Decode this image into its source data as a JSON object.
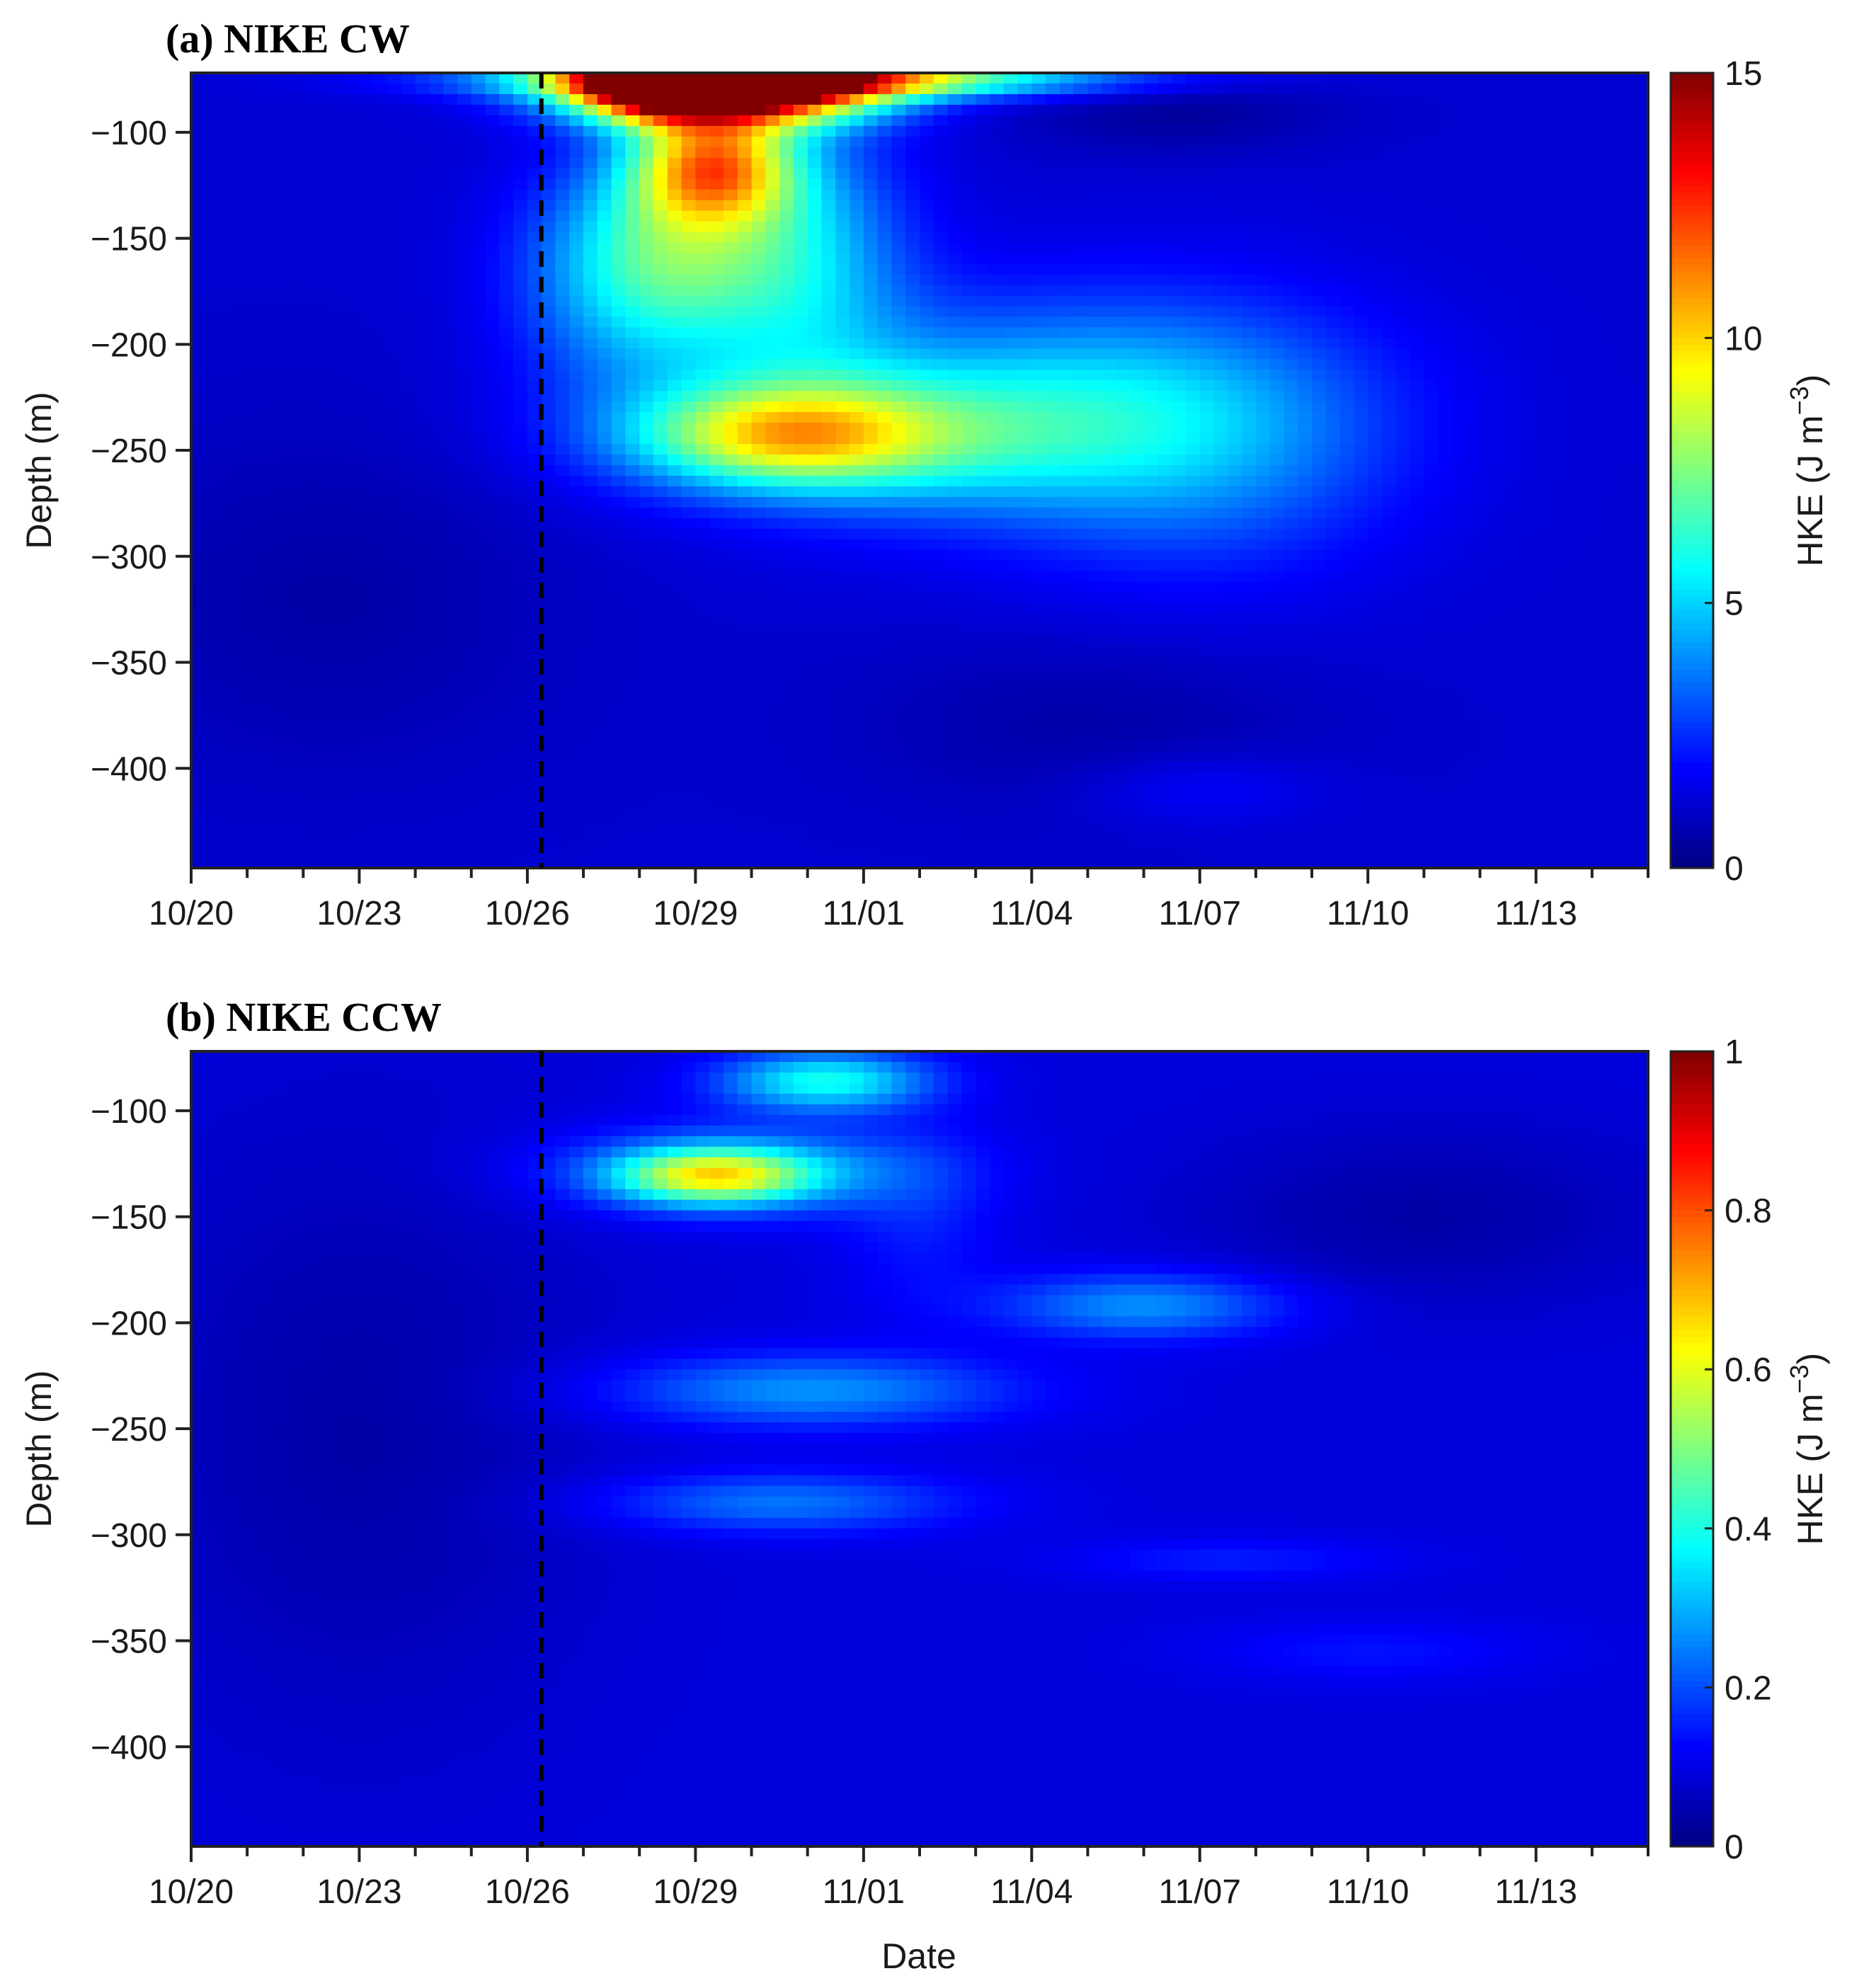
{
  "figure": {
    "xlabel": "Date",
    "colormap": "jet",
    "dashed_line_date": "10/26"
  },
  "chart_data": [
    {
      "type": "heatmap",
      "title": "(a) NIKE CW",
      "ylabel": "Depth (m)",
      "colorbar_label": "HKE (J m",
      "colorbar_label_exp": "−3",
      "colorbar_label_end": ")",
      "x_tick_labels": [
        "10/20",
        "10/23",
        "10/26",
        "10/29",
        "11/01",
        "11/04",
        "11/07",
        "11/10",
        "11/13"
      ],
      "x_tick_days": [
        0,
        3,
        6,
        9,
        12,
        15,
        18,
        21,
        24
      ],
      "x_range_days": [
        0,
        26
      ],
      "y_tick_labels": [
        "−100",
        "−150",
        "−200",
        "−250",
        "−300",
        "−350",
        "−400"
      ],
      "y_tick_values": [
        -100,
        -150,
        -200,
        -250,
        -300,
        -350,
        -400
      ],
      "ylim": [
        -447,
        -72
      ],
      "clim": [
        0,
        15
      ],
      "colorbar_tick_labels": [
        "0",
        "5",
        "10",
        "15"
      ],
      "colorbar_tick_values": [
        0,
        5,
        10,
        15
      ],
      "background": 1.2,
      "blobs": [
        {
          "x": 9.5,
          "y": -78,
          "sx": 1.8,
          "sy": 12,
          "a": 18
        },
        {
          "x": 11.0,
          "y": -75,
          "sx": 3.5,
          "sy": 6,
          "a": 8
        },
        {
          "x": 8.2,
          "y": -72,
          "sx": 0.8,
          "sy": 12,
          "a": 8
        },
        {
          "x": 9.3,
          "y": -115,
          "sx": 1.0,
          "sy": 18,
          "a": 8
        },
        {
          "x": 8.7,
          "y": -150,
          "sx": 1.5,
          "sy": 30,
          "a": 4
        },
        {
          "x": 8.0,
          "y": -180,
          "sx": 1.5,
          "sy": 35,
          "a": 2.5
        },
        {
          "x": 11.0,
          "y": -160,
          "sx": 1.3,
          "sy": 45,
          "a": 3
        },
        {
          "x": 10.5,
          "y": -243,
          "sx": 1.8,
          "sy": 16,
          "a": 5.5
        },
        {
          "x": 12.0,
          "y": -245,
          "sx": 3.0,
          "sy": 22,
          "a": 2.5
        },
        {
          "x": 14.5,
          "y": -230,
          "sx": 3.5,
          "sy": 35,
          "a": 3
        },
        {
          "x": 18.0,
          "y": -245,
          "sx": 2.5,
          "sy": 45,
          "a": 2.2
        },
        {
          "x": 17.5,
          "y": -90,
          "sx": 2.0,
          "sy": 14,
          "a": -0.8
        },
        {
          "x": 16.0,
          "y": -380,
          "sx": 3.0,
          "sy": 30,
          "a": -0.6
        },
        {
          "x": 2.5,
          "y": -320,
          "sx": 3.0,
          "sy": 60,
          "a": -0.6
        },
        {
          "x": 18.0,
          "y": -410,
          "sx": 1.5,
          "sy": 12,
          "a": 0.8
        }
      ]
    },
    {
      "type": "heatmap",
      "title": "(b) NIKE CCW",
      "ylabel": "Depth (m)",
      "colorbar_label": "HKE (J m",
      "colorbar_label_exp": "−3",
      "colorbar_label_end": ")",
      "x_tick_labels": [
        "10/20",
        "10/23",
        "10/26",
        "10/29",
        "11/01",
        "11/04",
        "11/07",
        "11/10",
        "11/13"
      ],
      "x_tick_days": [
        0,
        3,
        6,
        9,
        12,
        15,
        18,
        21,
        24
      ],
      "x_range_days": [
        0,
        26
      ],
      "y_tick_labels": [
        "−100",
        "−150",
        "−200",
        "−250",
        "−300",
        "−350",
        "−400"
      ],
      "y_tick_values": [
        -100,
        -150,
        -200,
        -250,
        -300,
        -350,
        -400
      ],
      "ylim": [
        -447,
        -72
      ],
      "clim": [
        0,
        1
      ],
      "colorbar_tick_labels": [
        "0",
        "0.2",
        "0.4",
        "0.6",
        "0.8",
        "1"
      ],
      "colorbar_tick_values": [
        0,
        0.2,
        0.4,
        0.6,
        0.8,
        1
      ],
      "background": 0.09,
      "blobs": [
        {
          "x": 11.3,
          "y": -86,
          "sx": 1.3,
          "sy": 10,
          "a": 0.3
        },
        {
          "x": 9.3,
          "y": -131,
          "sx": 1.2,
          "sy": 9,
          "a": 0.4
        },
        {
          "x": 9.8,
          "y": -128,
          "sx": 2.2,
          "sy": 14,
          "a": 0.2
        },
        {
          "x": 11.0,
          "y": -232,
          "sx": 2.5,
          "sy": 12,
          "a": 0.18
        },
        {
          "x": 10.5,
          "y": -285,
          "sx": 2.2,
          "sy": 10,
          "a": 0.15
        },
        {
          "x": 17.0,
          "y": -192,
          "sx": 1.8,
          "sy": 11,
          "a": 0.18
        },
        {
          "x": 18.5,
          "y": -312,
          "sx": 2.0,
          "sy": 7,
          "a": 0.06
        },
        {
          "x": 21.0,
          "y": -355,
          "sx": 2.0,
          "sy": 10,
          "a": 0.05
        },
        {
          "x": 13.0,
          "y": -150,
          "sx": 1.0,
          "sy": 30,
          "a": 0.06
        },
        {
          "x": 3.0,
          "y": -250,
          "sx": 3.0,
          "sy": 100,
          "a": -0.05
        },
        {
          "x": 22.0,
          "y": -150,
          "sx": 3.0,
          "sy": 30,
          "a": -0.05
        }
      ]
    }
  ]
}
